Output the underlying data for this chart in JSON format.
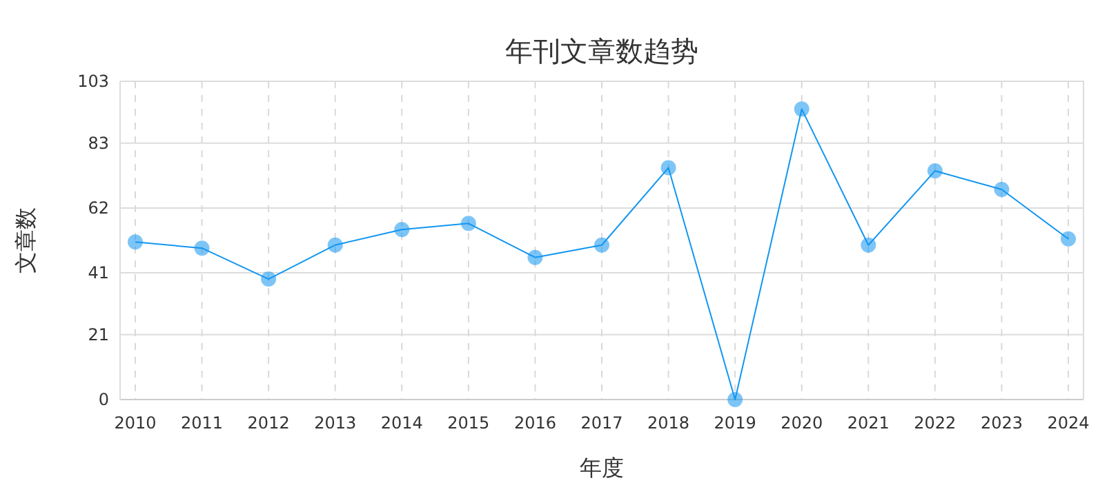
{
  "chart_data": {
    "type": "line",
    "title": "年刊文章数趋势",
    "xlabel": "年度",
    "ylabel": "文章数",
    "categories": [
      "2010",
      "2011",
      "2012",
      "2013",
      "2014",
      "2015",
      "2016",
      "2017",
      "2018",
      "2019",
      "2020",
      "2021",
      "2022",
      "2023",
      "2024"
    ],
    "series": [
      {
        "color": "#1296f0",
        "values": [
          51,
          49,
          39,
          50,
          55,
          57,
          46,
          50,
          75,
          0,
          94,
          50,
          74,
          68,
          52
        ]
      }
    ],
    "ylim": [
      0,
      103
    ],
    "yticks": [
      0,
      21,
      41,
      62,
      83,
      103
    ],
    "grid": true,
    "marker": "circle",
    "line_style": "solid"
  }
}
